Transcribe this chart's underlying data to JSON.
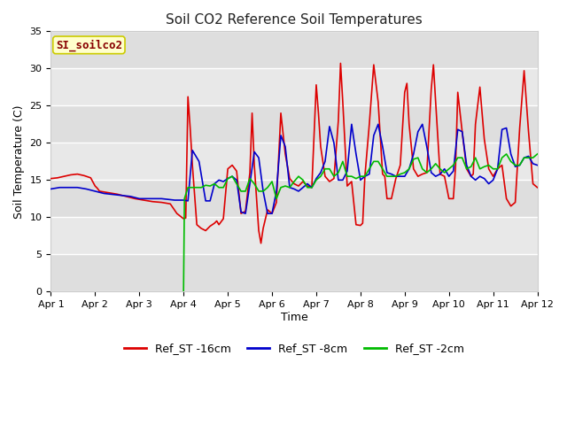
{
  "title": "Soil CO2 Reference Soil Temperatures",
  "xlabel": "Time",
  "ylabel": "Soil Temperature (C)",
  "ylim": [
    0,
    35
  ],
  "xlim": [
    0,
    11
  ],
  "xtick_labels": [
    "Apr 1",
    "Apr 2",
    "Apr 3",
    "Apr 4",
    "Apr 5",
    "Apr 6",
    "Apr 7",
    "Apr 8",
    "Apr 9",
    "Apr 10",
    "Apr 11",
    "Apr 12"
  ],
  "ytick_values": [
    0,
    5,
    10,
    15,
    20,
    25,
    30,
    35
  ],
  "plot_bg": "#e8e8e8",
  "fig_bg": "#ffffff",
  "annotation_text": "SI_soilco2",
  "annotation_bg": "#ffffcc",
  "annotation_fg": "#880000",
  "annotation_border": "#cccc00",
  "line_colors": {
    "red": "#dd0000",
    "blue": "#0000cc",
    "green": "#00bb00"
  },
  "legend_labels": [
    "Ref_ST -16cm",
    "Ref_ST -8cm",
    "Ref_ST -2cm"
  ],
  "red_x": [
    0.0,
    0.15,
    0.3,
    0.45,
    0.6,
    0.75,
    0.9,
    1.0,
    1.05,
    1.1,
    1.3,
    1.5,
    1.7,
    1.9,
    2.1,
    2.3,
    2.5,
    2.7,
    2.85,
    3.0,
    3.05,
    3.1,
    3.15,
    3.2,
    3.3,
    3.4,
    3.5,
    3.6,
    3.7,
    3.75,
    3.8,
    3.9,
    4.0,
    4.1,
    4.2,
    4.3,
    4.4,
    4.5,
    4.55,
    4.6,
    4.7,
    4.75,
    4.8,
    4.9,
    5.0,
    5.1,
    5.2,
    5.3,
    5.4,
    5.5,
    5.6,
    5.65,
    5.7,
    5.8,
    5.9,
    6.0,
    6.05,
    6.1,
    6.2,
    6.3,
    6.4,
    6.5,
    6.55,
    6.6,
    6.7,
    6.8,
    6.9,
    7.0,
    7.05,
    7.1,
    7.2,
    7.3,
    7.4,
    7.5,
    7.55,
    7.6,
    7.7,
    7.8,
    7.9,
    8.0,
    8.05,
    8.1,
    8.2,
    8.3,
    8.4,
    8.5,
    8.6,
    8.65,
    8.7,
    8.8,
    8.9,
    9.0,
    9.1,
    9.15,
    9.2,
    9.3,
    9.4,
    9.5,
    9.55,
    9.6,
    9.7,
    9.8,
    9.9,
    10.0,
    10.1,
    10.2,
    10.3,
    10.4,
    10.5,
    10.6,
    10.7,
    10.8,
    10.9,
    11.0
  ],
  "red_y": [
    15.2,
    15.3,
    15.5,
    15.7,
    15.8,
    15.6,
    15.3,
    14.2,
    13.9,
    13.5,
    13.3,
    13.1,
    12.8,
    12.5,
    12.3,
    12.1,
    12.0,
    11.8,
    10.5,
    9.8,
    9.9,
    26.2,
    22.0,
    17.0,
    9.0,
    8.5,
    8.2,
    8.8,
    9.2,
    9.5,
    9.0,
    9.8,
    16.5,
    17.0,
    16.2,
    10.5,
    10.8,
    16.0,
    24.0,
    17.0,
    8.2,
    6.5,
    8.5,
    11.0,
    10.5,
    12.0,
    24.0,
    18.5,
    15.2,
    14.5,
    14.2,
    14.5,
    14.8,
    14.2,
    14.0,
    27.8,
    24.0,
    19.5,
    15.5,
    14.8,
    15.2,
    23.0,
    30.7,
    25.5,
    14.2,
    14.8,
    9.0,
    8.9,
    9.2,
    15.5,
    22.5,
    30.5,
    25.5,
    15.8,
    15.5,
    12.5,
    12.5,
    15.2,
    17.0,
    26.8,
    28.0,
    22.5,
    16.5,
    15.5,
    15.8,
    16.0,
    27.2,
    30.5,
    25.5,
    15.8,
    15.5,
    12.5,
    12.5,
    16.8,
    26.8,
    21.5,
    16.5,
    15.5,
    15.8,
    22.5,
    27.5,
    20.5,
    16.5,
    15.5,
    16.5,
    17.0,
    12.5,
    11.5,
    12.0,
    22.0,
    29.7,
    21.5,
    14.5,
    14.0
  ],
  "blue_x": [
    0.0,
    0.2,
    0.4,
    0.6,
    0.8,
    1.0,
    1.2,
    1.5,
    1.8,
    2.0,
    2.5,
    2.8,
    3.0,
    3.1,
    3.2,
    3.35,
    3.5,
    3.6,
    3.7,
    3.8,
    3.9,
    4.0,
    4.1,
    4.2,
    4.3,
    4.4,
    4.5,
    4.6,
    4.7,
    4.8,
    4.9,
    5.0,
    5.1,
    5.2,
    5.3,
    5.4,
    5.5,
    5.6,
    5.7,
    5.8,
    5.9,
    6.0,
    6.1,
    6.2,
    6.3,
    6.4,
    6.5,
    6.6,
    6.7,
    6.8,
    6.9,
    7.0,
    7.1,
    7.2,
    7.3,
    7.4,
    7.5,
    7.6,
    7.7,
    7.8,
    7.9,
    8.0,
    8.1,
    8.2,
    8.3,
    8.4,
    8.5,
    8.6,
    8.7,
    8.8,
    8.9,
    9.0,
    9.1,
    9.2,
    9.3,
    9.4,
    9.5,
    9.6,
    9.7,
    9.8,
    9.9,
    10.0,
    10.1,
    10.2,
    10.3,
    10.4,
    10.5,
    10.6,
    10.7,
    10.8,
    10.9,
    11.0
  ],
  "blue_y": [
    13.8,
    14.0,
    14.0,
    14.0,
    13.8,
    13.5,
    13.2,
    13.0,
    12.8,
    12.5,
    12.5,
    12.3,
    12.3,
    12.2,
    19.0,
    17.5,
    12.2,
    12.2,
    14.5,
    15.0,
    14.8,
    15.2,
    15.5,
    15.0,
    10.7,
    10.5,
    14.5,
    18.8,
    18.0,
    13.5,
    10.5,
    10.5,
    13.5,
    21.0,
    19.5,
    14.0,
    13.8,
    13.5,
    14.0,
    14.5,
    14.0,
    15.2,
    16.0,
    17.5,
    22.2,
    20.0,
    15.0,
    15.0,
    16.2,
    22.5,
    18.5,
    15.0,
    15.5,
    15.8,
    21.0,
    22.5,
    19.5,
    16.0,
    15.8,
    15.5,
    15.5,
    15.5,
    16.5,
    18.5,
    21.5,
    22.5,
    19.5,
    16.0,
    15.5,
    15.8,
    16.5,
    15.5,
    16.2,
    21.8,
    21.5,
    17.0,
    15.5,
    15.0,
    15.5,
    15.2,
    14.5,
    15.0,
    16.5,
    21.8,
    22.0,
    18.5,
    16.8,
    17.0,
    18.0,
    18.2,
    17.2,
    17.0
  ],
  "green_x": [
    3.0,
    3.02,
    3.1,
    3.2,
    3.3,
    3.4,
    3.5,
    3.6,
    3.7,
    3.8,
    3.9,
    4.0,
    4.1,
    4.2,
    4.3,
    4.4,
    4.5,
    4.6,
    4.7,
    4.8,
    4.9,
    5.0,
    5.1,
    5.2,
    5.3,
    5.4,
    5.5,
    5.6,
    5.7,
    5.8,
    5.9,
    6.0,
    6.1,
    6.2,
    6.3,
    6.4,
    6.5,
    6.6,
    6.7,
    6.8,
    6.9,
    7.0,
    7.1,
    7.2,
    7.3,
    7.4,
    7.5,
    7.6,
    7.7,
    7.8,
    7.9,
    8.0,
    8.1,
    8.2,
    8.3,
    8.4,
    8.5,
    8.6,
    8.7,
    8.8,
    8.9,
    9.0,
    9.1,
    9.2,
    9.3,
    9.4,
    9.5,
    9.6,
    9.7,
    9.8,
    9.9,
    10.0,
    10.1,
    10.2,
    10.3,
    10.4,
    10.5,
    10.6,
    10.7,
    10.8,
    10.9,
    11.0
  ],
  "green_y": [
    0.0,
    12.5,
    14.0,
    14.0,
    14.0,
    14.0,
    14.3,
    14.2,
    14.5,
    14.0,
    14.0,
    15.2,
    15.5,
    14.5,
    13.5,
    13.5,
    15.2,
    14.5,
    13.5,
    13.5,
    14.0,
    14.8,
    12.5,
    14.0,
    14.2,
    14.0,
    14.8,
    15.5,
    15.0,
    14.0,
    14.0,
    15.0,
    15.5,
    16.5,
    16.5,
    15.5,
    16.0,
    17.5,
    15.5,
    15.5,
    15.2,
    15.5,
    15.5,
    16.5,
    17.5,
    17.5,
    16.5,
    15.5,
    15.5,
    15.5,
    15.8,
    16.0,
    16.5,
    17.8,
    18.0,
    16.5,
    16.0,
    16.5,
    17.2,
    16.5,
    16.0,
    16.5,
    17.0,
    18.0,
    18.0,
    16.5,
    16.8,
    18.0,
    16.5,
    16.8,
    17.0,
    16.5,
    16.5,
    18.0,
    18.5,
    17.5,
    17.0,
    17.0,
    18.0,
    18.0,
    18.0,
    18.5
  ]
}
